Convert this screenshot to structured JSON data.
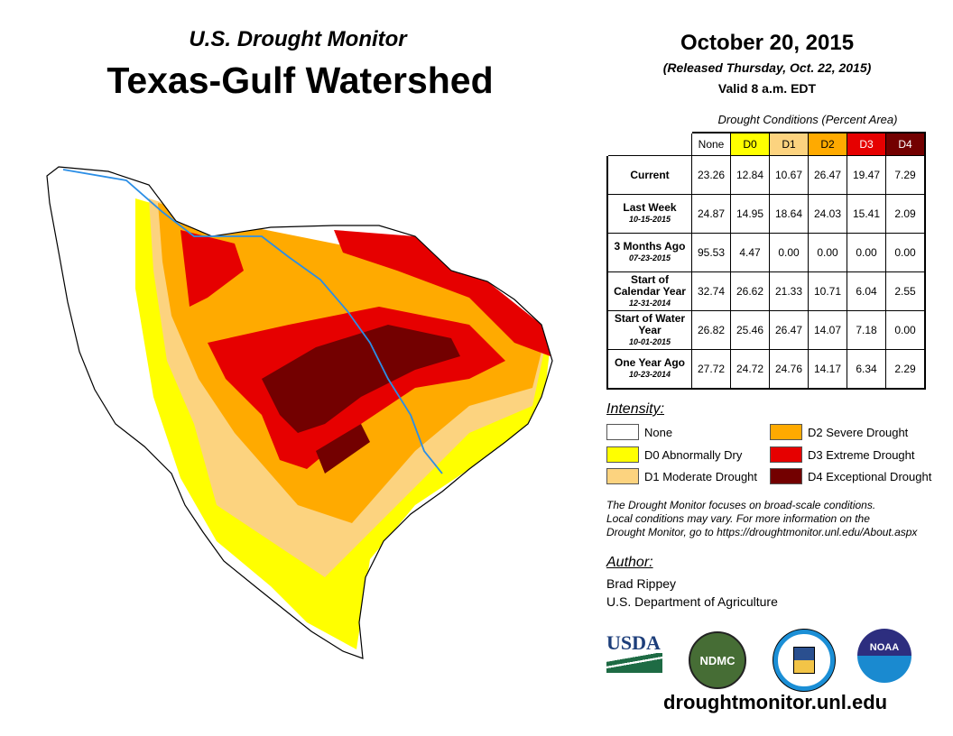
{
  "header": {
    "subtitle": "U.S. Drought Monitor",
    "title": "Texas-Gulf Watershed"
  },
  "date": {
    "main": "October 20, 2015",
    "released": "(Released Thursday, Oct. 22, 2015)",
    "valid": "Valid 8 a.m. EDT"
  },
  "table": {
    "caption": "Drought Conditions (Percent Area)",
    "columns": [
      "None",
      "D0",
      "D1",
      "D2",
      "D3",
      "D4"
    ],
    "rows": [
      {
        "label": "Current",
        "date": "",
        "values": [
          "23.26",
          "12.84",
          "10.67",
          "26.47",
          "19.47",
          "7.29"
        ]
      },
      {
        "label": "Last Week",
        "date": "10-15-2015",
        "values": [
          "24.87",
          "14.95",
          "18.64",
          "24.03",
          "15.41",
          "2.09"
        ]
      },
      {
        "label": "3 Months Ago",
        "date": "07-23-2015",
        "values": [
          "95.53",
          "4.47",
          "0.00",
          "0.00",
          "0.00",
          "0.00"
        ]
      },
      {
        "label": "Start of Calendar Year",
        "date": "12-31-2014",
        "values": [
          "32.74",
          "26.62",
          "21.33",
          "10.71",
          "6.04",
          "2.55"
        ]
      },
      {
        "label": "Start of Water Year",
        "date": "10-01-2015",
        "values": [
          "26.82",
          "25.46",
          "26.47",
          "14.07",
          "7.18",
          "0.00"
        ]
      },
      {
        "label": "One Year Ago",
        "date": "10-23-2014",
        "values": [
          "27.72",
          "24.72",
          "24.76",
          "14.17",
          "6.34",
          "2.29"
        ]
      }
    ]
  },
  "legend": {
    "title": "Intensity:",
    "items": [
      {
        "label": "None",
        "color": "#ffffff"
      },
      {
        "label": "D0 Abnormally Dry",
        "color": "#ffff00"
      },
      {
        "label": "D1 Moderate Drought",
        "color": "#fcd37f"
      },
      {
        "label": "D2 Severe Drought",
        "color": "#ffaa00"
      },
      {
        "label": "D3 Extreme Drought",
        "color": "#e60000"
      },
      {
        "label": "D4 Exceptional Drought",
        "color": "#730000"
      }
    ]
  },
  "note": [
    "The Drought Monitor focuses on broad-scale conditions.",
    "Local conditions may vary. For more information on the",
    "Drought Monitor, go to https://droughtmonitor.unl.edu/About.aspx"
  ],
  "author": {
    "title": "Author:",
    "name": "Brad Rippey",
    "org": "U.S. Department of Agriculture"
  },
  "logos": {
    "usda": "USDA",
    "ndmc": "NDMC",
    "noaa": "NOAA"
  },
  "url": "droughtmonitor.unl.edu"
}
